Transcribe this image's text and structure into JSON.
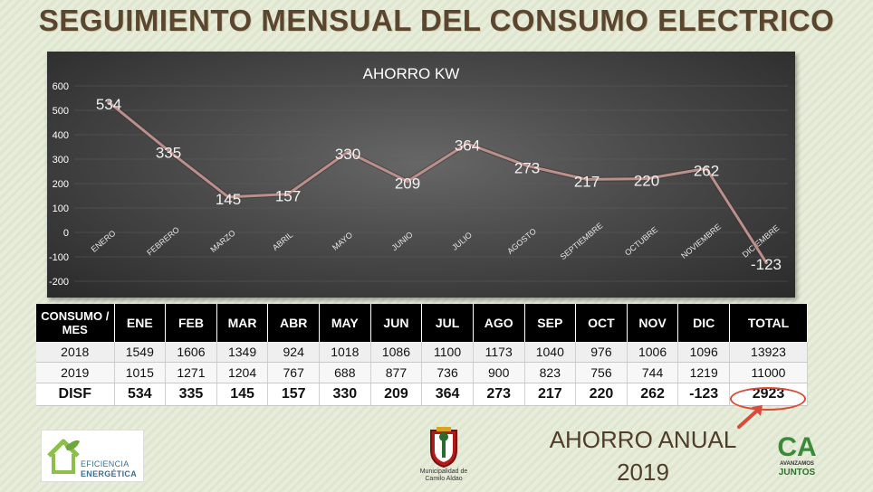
{
  "slide": {
    "title": "SEGUIMIENTO MENSUAL DEL CONSUMO ELECTRICO",
    "annual_label": "AHORRO ANUAL",
    "annual_year": "2019"
  },
  "chart_data": {
    "type": "line",
    "title": "AHORRO KW",
    "categories": [
      "ENERO",
      "FEBRERO",
      "MARZO",
      "ABRIL",
      "MAYO",
      "JUNIO",
      "JULIO",
      "AGOSTO",
      "SEPTIEMBRE",
      "OCTUBRE",
      "NOVIEMBRE",
      "DICIEMBRE"
    ],
    "values": [
      534,
      335,
      145,
      157,
      330,
      209,
      364,
      273,
      217,
      220,
      262,
      -123
    ],
    "ylim": [
      -200,
      600
    ],
    "yticks": [
      600,
      500,
      400,
      300,
      200,
      100,
      0,
      -100,
      -200
    ],
    "grid": true,
    "legend": "none",
    "colors": {
      "line": "#b8908c",
      "text": "#ffffff",
      "grid": "#5e5e5e"
    }
  },
  "table": {
    "header": [
      "CONSUMO / MES",
      "ENE",
      "FEB",
      "MAR",
      "ABR",
      "MAY",
      "JUN",
      "JUL",
      "AGO",
      "SEP",
      "OCT",
      "NOV",
      "DIC",
      "TOTAL"
    ],
    "rows": [
      [
        "2018",
        "1549",
        "1606",
        "1349",
        "924",
        "1018",
        "1086",
        "1100",
        "1173",
        "1040",
        "976",
        "1006",
        "1096",
        "13923"
      ],
      [
        "2019",
        "1015",
        "1271",
        "1204",
        "767",
        "688",
        "877",
        "736",
        "900",
        "823",
        "756",
        "744",
        "1219",
        "11000"
      ],
      [
        "DISF",
        "534",
        "335",
        "145",
        "157",
        "330",
        "209",
        "364",
        "273",
        "217",
        "220",
        "262",
        "-123",
        "2923"
      ]
    ]
  },
  "logos": {
    "left_line1": "EFICIENCIA",
    "left_line2": "ENERGÉTICA",
    "mid_line1": "Municipalidad de",
    "mid_line2": "Camilo Aldao",
    "right_mark": "CA",
    "right_line1": "AVANZAMOS",
    "right_line2": "JUNTOS"
  },
  "colors": {
    "accent": "#d94a38",
    "title": "#5a4630",
    "table_header": "#000000"
  }
}
